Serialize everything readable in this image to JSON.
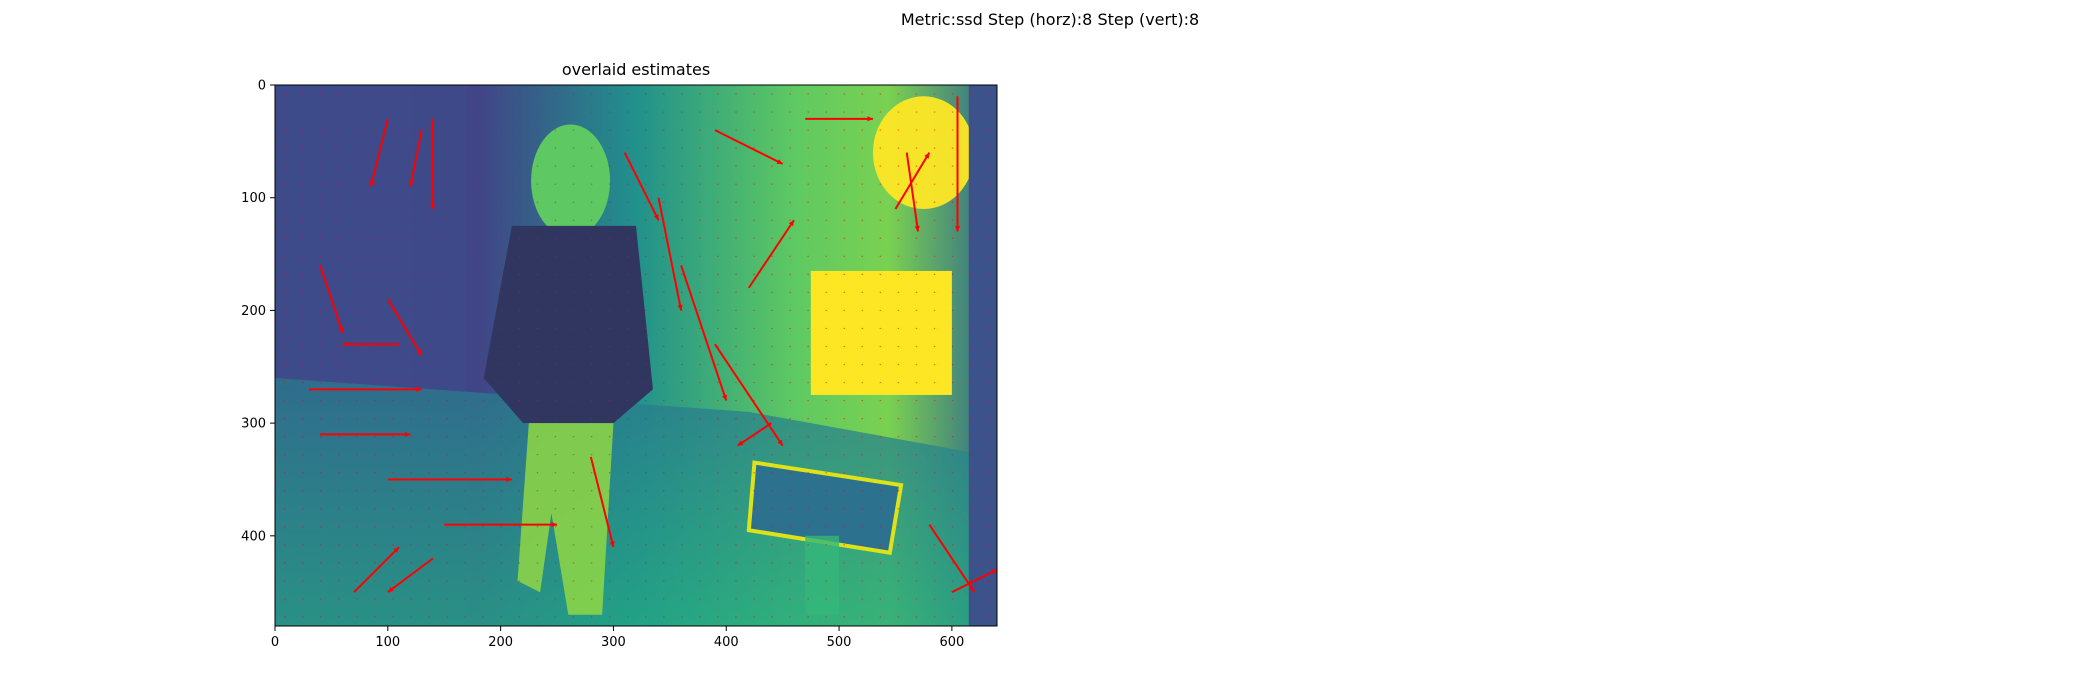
{
  "figure": {
    "suptitle": "Metric:ssd Step (horz):8 Step (vert):8"
  },
  "chart_data": {
    "type": "heatmap",
    "title": "overlaid estimates",
    "xlabel": "",
    "ylabel": "",
    "xlim": [
      0,
      640
    ],
    "ylim": [
      480,
      0
    ],
    "y_inverted": true,
    "xticks": [
      0,
      100,
      200,
      300,
      400,
      500,
      600
    ],
    "yticks": [
      0,
      100,
      200,
      300,
      400
    ],
    "grid": false,
    "legend": "none",
    "background_image": "grayscale photo rendered with viridis colormap: man in patterned shirt walking in a room with a chair",
    "colormap": "viridis",
    "overlay": {
      "type": "quiver",
      "color": "#ff0000",
      "grid_step": 8,
      "notable_vectors": [
        {
          "x": 100,
          "y": 30,
          "u": -15,
          "v": 60
        },
        {
          "x": 130,
          "y": 40,
          "u": -10,
          "v": 50
        },
        {
          "x": 140,
          "y": 30,
          "u": 0,
          "v": 80
        },
        {
          "x": 40,
          "y": 160,
          "u": 20,
          "v": 60
        },
        {
          "x": 100,
          "y": 190,
          "u": 30,
          "v": 50
        },
        {
          "x": 110,
          "y": 230,
          "u": -50,
          "v": 0
        },
        {
          "x": 30,
          "y": 270,
          "u": 100,
          "v": 0
        },
        {
          "x": 40,
          "y": 310,
          "u": 80,
          "v": 0
        },
        {
          "x": 100,
          "y": 350,
          "u": 110,
          "v": 0
        },
        {
          "x": 150,
          "y": 390,
          "u": 100,
          "v": 0
        },
        {
          "x": 70,
          "y": 450,
          "u": 40,
          "v": -40
        },
        {
          "x": 140,
          "y": 420,
          "u": -40,
          "v": 30
        },
        {
          "x": 310,
          "y": 60,
          "u": 30,
          "v": 60
        },
        {
          "x": 340,
          "y": 100,
          "u": 20,
          "v": 100
        },
        {
          "x": 360,
          "y": 160,
          "u": 40,
          "v": 120
        },
        {
          "x": 390,
          "y": 230,
          "u": 60,
          "v": 90
        },
        {
          "x": 420,
          "y": 180,
          "u": 40,
          "v": -60
        },
        {
          "x": 390,
          "y": 40,
          "u": 60,
          "v": 30
        },
        {
          "x": 470,
          "y": 30,
          "u": 60,
          "v": 0
        },
        {
          "x": 550,
          "y": 110,
          "u": 30,
          "v": -50
        },
        {
          "x": 560,
          "y": 60,
          "u": 10,
          "v": 70
        },
        {
          "x": 605,
          "y": 10,
          "u": 0,
          "v": 120
        },
        {
          "x": 580,
          "y": 390,
          "u": 40,
          "v": 60
        },
        {
          "x": 600,
          "y": 450,
          "u": 40,
          "v": -20
        },
        {
          "x": 280,
          "y": 330,
          "u": 20,
          "v": 80
        },
        {
          "x": 440,
          "y": 300,
          "u": -30,
          "v": 20
        }
      ]
    }
  }
}
